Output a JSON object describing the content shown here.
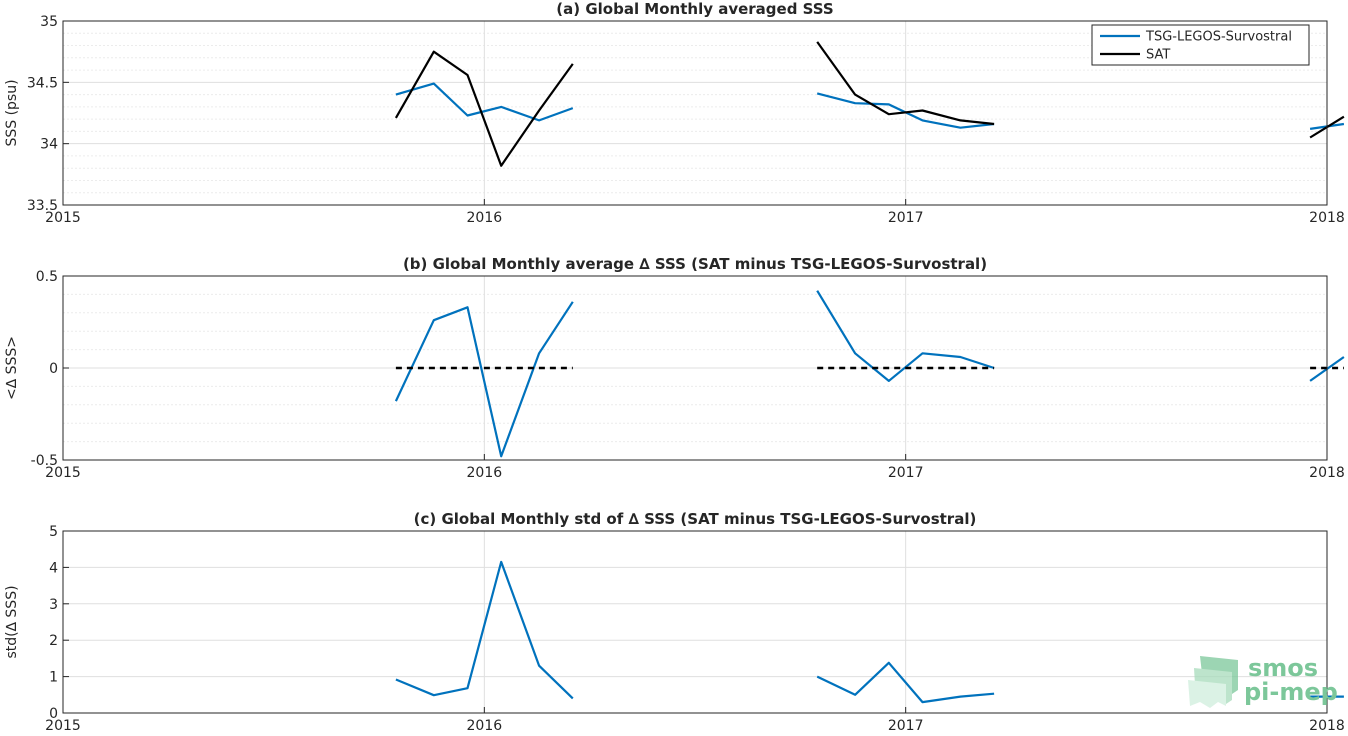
{
  "colors": {
    "tsg": "#0072BD",
    "sat": "#000000",
    "grid": "#dfdfdf",
    "axis": "#262626",
    "logo": "#7cc79a"
  },
  "logo": {
    "line1": "smos",
    "line2": "pi-mep",
    "icon": "smos-pi-mep-logo"
  },
  "chart_data": [
    {
      "type": "line",
      "title": "(a) Global Monthly averaged SSS",
      "xlabel": "",
      "ylabel": "SSS (psu)",
      "xlim": [
        2015,
        2018
      ],
      "ylim": [
        33.5,
        35
      ],
      "xticks": [
        "2015",
        "2016",
        "2017",
        "2018"
      ],
      "yticks": [
        "33.5",
        "34",
        "34.5",
        "35"
      ],
      "grid": true,
      "legend": "top-right",
      "legend_entries": [
        "TSG-LEGOS-Survostral",
        "SAT"
      ],
      "series": [
        {
          "name": "TSG-LEGOS-Survostral",
          "color_key": "tsg",
          "segments": [
            {
              "x": [
                2015.79,
                2015.88,
                2015.96,
                2016.04,
                2016.13,
                2016.21
              ],
              "y": [
                34.4,
                34.49,
                34.23,
                34.3,
                34.19,
                34.29
              ]
            },
            {
              "x": [
                2016.79,
                2016.88,
                2016.96,
                2017.04,
                2017.13,
                2017.21
              ],
              "y": [
                34.41,
                34.33,
                34.32,
                34.19,
                34.13,
                34.16
              ]
            },
            {
              "x": [
                2017.96,
                2018.04
              ],
              "y": [
                34.12,
                34.16
              ]
            }
          ]
        },
        {
          "name": "SAT",
          "color_key": "sat",
          "segments": [
            {
              "x": [
                2015.79,
                2015.88,
                2015.96,
                2016.04,
                2016.13,
                2016.21
              ],
              "y": [
                34.21,
                34.75,
                34.56,
                33.82,
                34.27,
                34.65
              ]
            },
            {
              "x": [
                2016.79,
                2016.88,
                2016.96,
                2017.04,
                2017.13,
                2017.21
              ],
              "y": [
                34.83,
                34.4,
                34.24,
                34.27,
                34.19,
                34.16
              ]
            },
            {
              "x": [
                2017.96,
                2018.04
              ],
              "y": [
                34.05,
                34.22
              ]
            }
          ]
        }
      ]
    },
    {
      "type": "line",
      "title": "(b) Global Monthly average ∆ SSS (SAT minus TSG-LEGOS-Survostral)",
      "xlabel": "",
      "ylabel": "<∆ SSS>",
      "xlim": [
        2015,
        2018
      ],
      "ylim": [
        -0.5,
        0.5
      ],
      "xticks": [
        "2015",
        "2016",
        "2017",
        "2018"
      ],
      "yticks": [
        "-0.5",
        "0",
        "0.5"
      ],
      "grid": true,
      "series": [
        {
          "color_key": "tsg",
          "segments": [
            {
              "x": [
                2015.79,
                2015.88,
                2015.96,
                2016.04,
                2016.13,
                2016.21
              ],
              "y": [
                -0.18,
                0.26,
                0.33,
                -0.48,
                0.08,
                0.36
              ]
            },
            {
              "x": [
                2016.79,
                2016.88,
                2016.96,
                2017.04,
                2017.13,
                2017.21
              ],
              "y": [
                0.42,
                0.08,
                -0.07,
                0.08,
                0.06,
                0.0
              ]
            },
            {
              "x": [
                2017.96,
                2018.04
              ],
              "y": [
                -0.07,
                0.06
              ]
            }
          ]
        },
        {
          "color_key": "sat",
          "dashed": true,
          "segments": [
            {
              "x": [
                2015.79,
                2016.21
              ],
              "y": [
                0,
                0
              ]
            },
            {
              "x": [
                2016.79,
                2017.21
              ],
              "y": [
                0,
                0
              ]
            },
            {
              "x": [
                2017.96,
                2018.04
              ],
              "y": [
                0,
                0
              ]
            }
          ]
        }
      ]
    },
    {
      "type": "line",
      "title": "(c) Global Monthly std of ∆ SSS (SAT minus TSG-LEGOS-Survostral)",
      "xlabel": "",
      "ylabel": "std(∆ SSS)",
      "xlim": [
        2015,
        2018
      ],
      "ylim": [
        0,
        5
      ],
      "xticks": [
        "2015",
        "2016",
        "2017",
        "2018"
      ],
      "yticks": [
        "0",
        "1",
        "2",
        "3",
        "4",
        "5"
      ],
      "grid": true,
      "series": [
        {
          "color_key": "tsg",
          "segments": [
            {
              "x": [
                2015.79,
                2015.88,
                2015.96,
                2016.04,
                2016.13,
                2016.21
              ],
              "y": [
                0.92,
                0.49,
                0.68,
                4.15,
                1.3,
                0.4
              ]
            },
            {
              "x": [
                2016.79,
                2016.88,
                2016.96,
                2017.04,
                2017.13,
                2017.21
              ],
              "y": [
                1.0,
                0.5,
                1.38,
                0.3,
                0.45,
                0.53
              ]
            },
            {
              "x": [
                2017.96,
                2018.04
              ],
              "y": [
                0.45,
                0.45
              ]
            }
          ]
        }
      ]
    }
  ]
}
